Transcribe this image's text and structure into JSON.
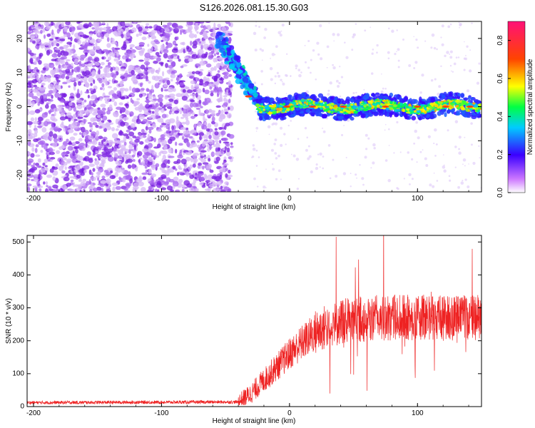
{
  "title": "S126.2026.081.15.30.G03",
  "chart_data": [
    {
      "type": "heatmap",
      "name": "spectrogram",
      "xlabel": "Height of straight line (km)",
      "ylabel": "Frequency (Hz)",
      "xlim": [
        -205,
        150
      ],
      "ylim": [
        -25,
        25
      ],
      "xticks": [
        -200,
        -100,
        0,
        100
      ],
      "yticks": [
        -20,
        -10,
        0,
        10,
        20
      ],
      "colorbar": {
        "label": "Normalized spectral amplitude",
        "range": [
          0.0,
          0.9
        ],
        "ticks": [
          0.0,
          0.2,
          0.4,
          0.6,
          0.8
        ]
      },
      "description_points": {
        "noise_region_x": [
          -205,
          -50
        ],
        "transition_x": [
          -55,
          -25
        ],
        "transition_freq": [
          20,
          2
        ],
        "signal_center_freq": 0,
        "signal_x": [
          -25,
          150
        ]
      }
    },
    {
      "type": "line",
      "name": "snr",
      "xlabel": "Height of straight line (km)",
      "ylabel": "SNR (10 * v/v)",
      "xlim": [
        -205,
        150
      ],
      "ylim": [
        0,
        520
      ],
      "xticks": [
        -200,
        -100,
        0,
        100
      ],
      "yticks": [
        0,
        100,
        200,
        300,
        400,
        500
      ],
      "color": "#ee2222",
      "trend_x": [
        -205,
        -40,
        -30,
        -20,
        -10,
        0,
        10,
        20,
        30,
        50,
        75,
        100,
        125,
        150
      ],
      "trend_y": [
        12,
        14,
        40,
        80,
        120,
        160,
        195,
        225,
        245,
        265,
        270,
        270,
        270,
        270
      ]
    }
  ]
}
